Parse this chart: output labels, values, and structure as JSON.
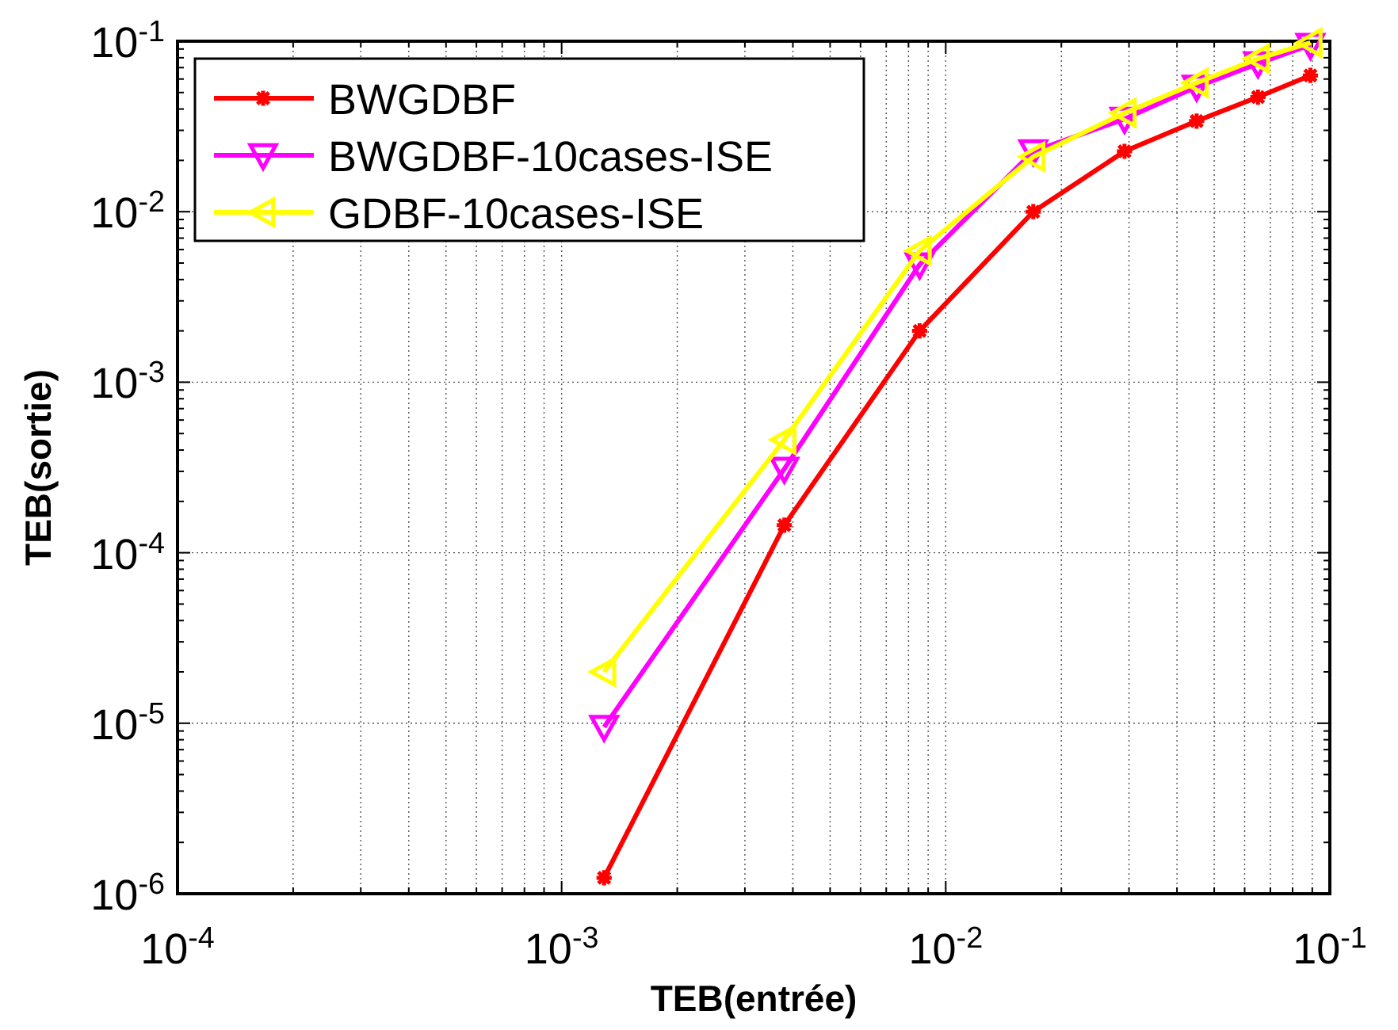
{
  "chart_data": {
    "type": "line",
    "xlabel": "TEB(entrée)",
    "ylabel": "TEB(sortie)",
    "log": "xy",
    "grid": true,
    "legend": "top left",
    "line_style": "solid",
    "xlim": [
      0.0001,
      0.1
    ],
    "ylim": [
      1e-06,
      0.1
    ],
    "xticks": [
      {
        "value": 0.0001,
        "label": "10$^{-4}$"
      },
      {
        "value": 0.001,
        "label": "10$^{-3}$"
      },
      {
        "value": 0.01,
        "label": "10$^{-2}$"
      },
      {
        "value": 0.1,
        "label": "10$^{-1}$"
      }
    ],
    "yticks": [
      {
        "value": 1e-06,
        "label": "10$^{-6}$"
      },
      {
        "value": 1e-05,
        "label": "10$^{-5}$"
      },
      {
        "value": 0.0001,
        "label": "10$^{-4}$"
      },
      {
        "value": 0.001,
        "label": "10$^{-3}$"
      },
      {
        "value": 0.01,
        "label": "10$^{-2}$"
      },
      {
        "value": 0.1,
        "label": "10$^{-1}$"
      }
    ],
    "x": [
      0.00129,
      0.0038,
      0.00855,
      0.0169,
      0.0292,
      0.045,
      0.065,
      0.089
    ],
    "series": [
      {
        "name": "BWGDBF",
        "color": "#ff0000",
        "marker": "cross",
        "values": [
          1.24e-06,
          0.000145,
          0.002,
          0.01,
          0.0226,
          0.034,
          0.047,
          0.063
        ]
      },
      {
        "name": "BWGDBF-10cases-ISE",
        "color": "#ff00ff",
        "marker": "triangle-down",
        "values": [
          9.5e-06,
          0.00031,
          0.0049,
          0.0226,
          0.035,
          0.054,
          0.074,
          0.095
        ]
      },
      {
        "name": "GDBF-10cases-ISE",
        "color": "#ffff00",
        "marker": "triangle-left",
        "values": [
          2e-05,
          0.00046,
          0.0059,
          0.021,
          0.038,
          0.057,
          0.079,
          0.098
        ]
      }
    ]
  }
}
